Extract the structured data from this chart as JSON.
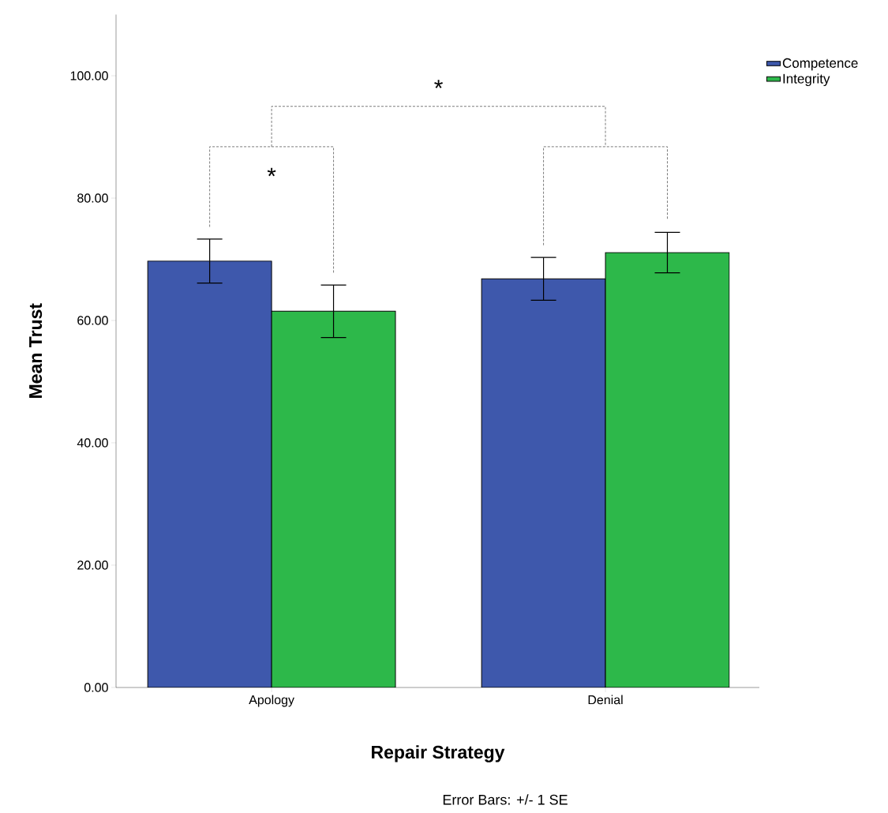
{
  "chart_data": {
    "type": "bar",
    "xlabel": "Repair Strategy",
    "ylabel": "Mean Trust",
    "categories": [
      "Apology",
      "Denial"
    ],
    "series": [
      {
        "name": "Competence",
        "color": "#3e58ac",
        "values": [
          69.7,
          66.8
        ],
        "errors": [
          3.6,
          3.5
        ]
      },
      {
        "name": "Integrity",
        "color": "#2db84a",
        "values": [
          61.5,
          71.1
        ],
        "errors": [
          4.3,
          3.3
        ]
      }
    ],
    "ylim": [
      0,
      110
    ],
    "yticks": [
      {
        "value": 0,
        "label": "0.00"
      },
      {
        "value": 20,
        "label": "20.00"
      },
      {
        "value": 40,
        "label": "40.00"
      },
      {
        "value": 60,
        "label": "60.00"
      },
      {
        "value": 80,
        "label": "80.00"
      },
      {
        "value": 100,
        "label": "100.00"
      }
    ],
    "legend": "top right",
    "grid": false,
    "annotations": [
      "*",
      "*",
      "Error Bars: +/- 1 SE"
    ]
  }
}
